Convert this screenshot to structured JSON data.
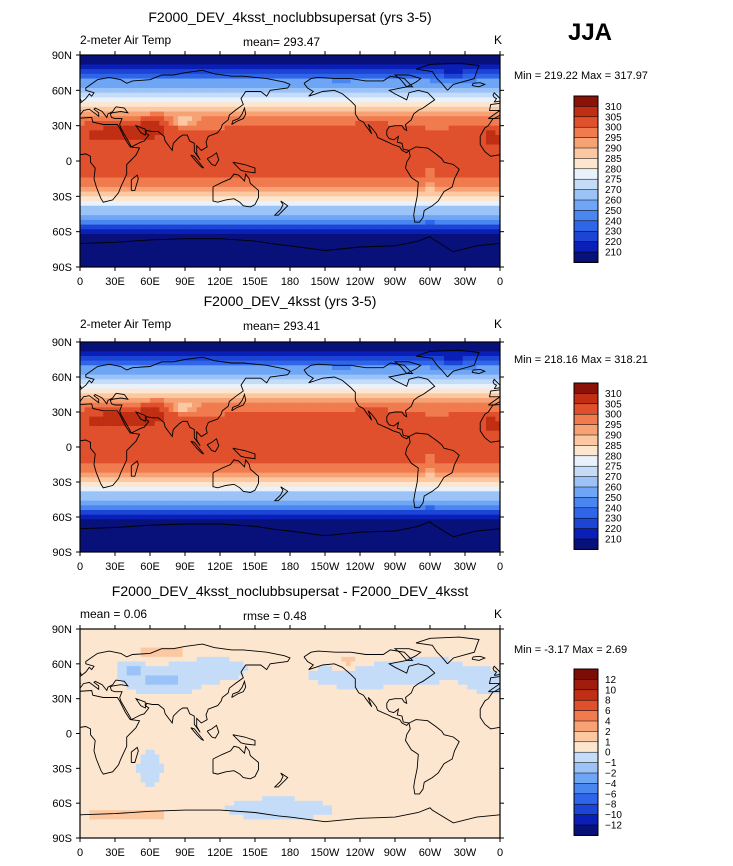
{
  "season": "JJA",
  "panels": [
    {
      "title": "F2000_DEV_4ksst_noclubbsupersat (yrs 3-5)",
      "left_label": "2-meter Air Temp",
      "center_label": "mean= 293.47",
      "unit": "K",
      "minmax": "Min = 219.22 Max = 317.97",
      "palette": "temp"
    },
    {
      "title": "F2000_DEV_4ksst (yrs 3-5)",
      "left_label": "2-meter Air Temp",
      "center_label": "mean= 293.41",
      "unit": "K",
      "minmax": "Min = 218.16 Max = 318.21",
      "palette": "temp"
    },
    {
      "title": "F2000_DEV_4ksst_noclubbsupersat - F2000_DEV_4ksst",
      "left_label": "mean =    0.06",
      "center_label": "rmse =    0.48",
      "unit": "K",
      "minmax": "Min =  -3.17 Max =    2.69",
      "palette": "diff"
    }
  ],
  "chart_data": [
    {
      "type": "heatmap",
      "title": "F2000_DEV_4ksst_noclubbsupersat (yrs 3-5)",
      "variable": "2-meter Air Temp",
      "units": "K",
      "mean": 293.47,
      "min": 219.22,
      "max": 317.97,
      "x_ticks": [
        "0",
        "30E",
        "60E",
        "90E",
        "120E",
        "150E",
        "180",
        "150W",
        "120W",
        "90W",
        "60W",
        "30W",
        "0"
      ],
      "y_ticks": [
        "90N",
        "60N",
        "30N",
        "0",
        "30S",
        "60S",
        "90S"
      ],
      "colorbar_levels": [
        210,
        220,
        230,
        240,
        250,
        260,
        270,
        275,
        280,
        285,
        290,
        295,
        300,
        305,
        310
      ],
      "colorbar_colors": [
        "#08107a",
        "#0a1eb8",
        "#1c45d6",
        "#2f65e8",
        "#4a86f0",
        "#6ea6f5",
        "#9bc3f7",
        "#c5dcf8",
        "#e9f1fa",
        "#fde6cf",
        "#fbc8a2",
        "#f7a274",
        "#f07b4e",
        "#e0502c",
        "#c02e13",
        "#8a1208"
      ]
    },
    {
      "type": "heatmap",
      "title": "F2000_DEV_4ksst (yrs 3-5)",
      "variable": "2-meter Air Temp",
      "units": "K",
      "mean": 293.41,
      "min": 218.16,
      "max": 318.21,
      "x_ticks": [
        "0",
        "30E",
        "60E",
        "90E",
        "120E",
        "150E",
        "180",
        "150W",
        "120W",
        "90W",
        "60W",
        "30W",
        "0"
      ],
      "y_ticks": [
        "90N",
        "60N",
        "30N",
        "0",
        "30S",
        "60S",
        "90S"
      ],
      "colorbar_levels": [
        210,
        220,
        230,
        240,
        250,
        260,
        270,
        275,
        280,
        285,
        290,
        295,
        300,
        305,
        310
      ],
      "colorbar_colors": [
        "#08107a",
        "#0a1eb8",
        "#1c45d6",
        "#2f65e8",
        "#4a86f0",
        "#6ea6f5",
        "#9bc3f7",
        "#c5dcf8",
        "#e9f1fa",
        "#fde6cf",
        "#fbc8a2",
        "#f7a274",
        "#f07b4e",
        "#e0502c",
        "#c02e13",
        "#8a1208"
      ]
    },
    {
      "type": "heatmap",
      "title": "F2000_DEV_4ksst_noclubbsupersat - F2000_DEV_4ksst",
      "units": "K",
      "mean": 0.06,
      "rmse": 0.48,
      "min": -3.17,
      "max": 2.69,
      "x_ticks": [
        "0",
        "30E",
        "60E",
        "90E",
        "120E",
        "150E",
        "180",
        "150W",
        "120W",
        "90W",
        "60W",
        "30W",
        "0"
      ],
      "y_ticks": [
        "90N",
        "60N",
        "30N",
        "0",
        "30S",
        "60S",
        "90S"
      ],
      "colorbar_levels": [
        -12,
        -10,
        -8,
        -6,
        -4,
        -2,
        -1,
        0,
        1,
        2,
        4,
        6,
        8,
        10,
        12
      ],
      "colorbar_colors": [
        "#08107a",
        "#0a1eb8",
        "#1c45d6",
        "#2f65e8",
        "#4a86f0",
        "#6ea6f5",
        "#9bc3f7",
        "#c5dcf8",
        "#fde6cf",
        "#fbc8a2",
        "#f7a274",
        "#f07b4e",
        "#e0502c",
        "#c02e13",
        "#a01c0c",
        "#7a0d05"
      ]
    }
  ]
}
